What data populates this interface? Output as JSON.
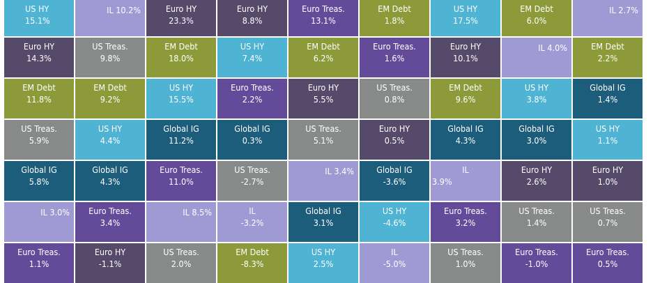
{
  "chart_data": {
    "type": "table",
    "colors": {
      "US HY": "#4fb3d4",
      "IL": "#a09ad4",
      "Euro HY": "#554a69",
      "Euro Treas.": "#634b9a",
      "EM Debt": "#8c9a3a",
      "US Treas.": "#888a8a",
      "Global IG": "#1d5d7c"
    },
    "rows": [
      [
        {
          "name": "US HY",
          "value": "15.1%"
        },
        {
          "name": "IL",
          "value": "10.2%",
          "inline": true
        },
        {
          "name": "Euro HY",
          "value": "23.3%"
        },
        {
          "name": "Euro HY",
          "value": "8.8%"
        },
        {
          "name": "Euro Treas.",
          "value": "13.1%"
        },
        {
          "name": "EM Debt",
          "value": "1.8%"
        },
        {
          "name": "US HY",
          "value": "17.5%"
        },
        {
          "name": "EM Debt",
          "value": "6.0%"
        },
        {
          "name": "IL",
          "value": "2.7%",
          "inline": true
        }
      ],
      [
        {
          "name": "Euro HY",
          "value": "14.3%"
        },
        {
          "name": "US Treas.",
          "value": "9.8%"
        },
        {
          "name": "EM Debt",
          "value": "18.0%"
        },
        {
          "name": "US HY",
          "value": "7.4%"
        },
        {
          "name": "EM Debt",
          "value": "6.2%"
        },
        {
          "name": "Euro Treas.",
          "value": "1.6%"
        },
        {
          "name": "Euro HY",
          "value": "10.1%"
        },
        {
          "name": "IL",
          "value": "4.0%",
          "inline": true
        },
        {
          "name": "EM Debt",
          "value": "2.2%"
        }
      ],
      [
        {
          "name": "EM Debt",
          "value": "11.8%"
        },
        {
          "name": "EM Debt",
          "value": "9.2%"
        },
        {
          "name": "US HY",
          "value": "15.5%"
        },
        {
          "name": "Euro Treas.",
          "value": "2.2%"
        },
        {
          "name": "Euro HY",
          "value": "5.5%"
        },
        {
          "name": "US Treas.",
          "value": "0.8%"
        },
        {
          "name": "EM Debt",
          "value": "9.6%"
        },
        {
          "name": "US HY",
          "value": "3.8%"
        },
        {
          "name": "Global IG",
          "value": "1.4%"
        }
      ],
      [
        {
          "name": "US Treas.",
          "value": "5.9%"
        },
        {
          "name": "US HY",
          "value": "4.4%"
        },
        {
          "name": "Global IG",
          "value": "11.2%"
        },
        {
          "name": "Global IG",
          "value": "0.3%"
        },
        {
          "name": "US Treas.",
          "value": "5.1%"
        },
        {
          "name": "Euro HY",
          "value": "0.5%"
        },
        {
          "name": "Global IG",
          "value": "4.3%"
        },
        {
          "name": "Global IG",
          "value": "3.0%"
        },
        {
          "name": "US HY",
          "value": "1.1%"
        }
      ],
      [
        {
          "name": "Global IG",
          "value": "5.8%"
        },
        {
          "name": "Global IG",
          "value": "4.3%"
        },
        {
          "name": "Euro Treas.",
          "value": "11.0%"
        },
        {
          "name": "US Treas.",
          "value": "-2.7%"
        },
        {
          "name": "IL",
          "value": "3.4%",
          "inline": true
        },
        {
          "name": "Global IG",
          "value": "-3.6%"
        },
        {
          "name": "IL",
          "value": "3.9%",
          "split": true
        },
        {
          "name": "Euro HY",
          "value": "2.6%"
        },
        {
          "name": "Euro HY",
          "value": "1.0%"
        }
      ],
      [
        {
          "name": "IL",
          "value": "3.0%",
          "inline": true
        },
        {
          "name": "Euro Treas.",
          "value": "3.4%"
        },
        {
          "name": "IL",
          "value": "8.5%",
          "inline": true
        },
        {
          "name": "IL",
          "value": "-3.2%"
        },
        {
          "name": "Global IG",
          "value": "3.1%"
        },
        {
          "name": "US HY",
          "value": "-4.6%"
        },
        {
          "name": "Euro Treas.",
          "value": "3.2%"
        },
        {
          "name": "US Treas.",
          "value": "1.4%"
        },
        {
          "name": "US Treas.",
          "value": "0.7%"
        }
      ],
      [
        {
          "name": "Euro Treas.",
          "value": "1.1%"
        },
        {
          "name": "Euro HY",
          "value": "-1.1%"
        },
        {
          "name": "US Treas.",
          "value": "2.0%"
        },
        {
          "name": "EM Debt",
          "value": "-8.3%"
        },
        {
          "name": "US HY",
          "value": "2.5%"
        },
        {
          "name": "IL",
          "value": "-5.0%"
        },
        {
          "name": "US Treas.",
          "value": "1.0%"
        },
        {
          "name": "Euro Treas.",
          "value": "-1.0%"
        },
        {
          "name": "Euro Treas.",
          "value": "0.5%"
        }
      ]
    ]
  }
}
